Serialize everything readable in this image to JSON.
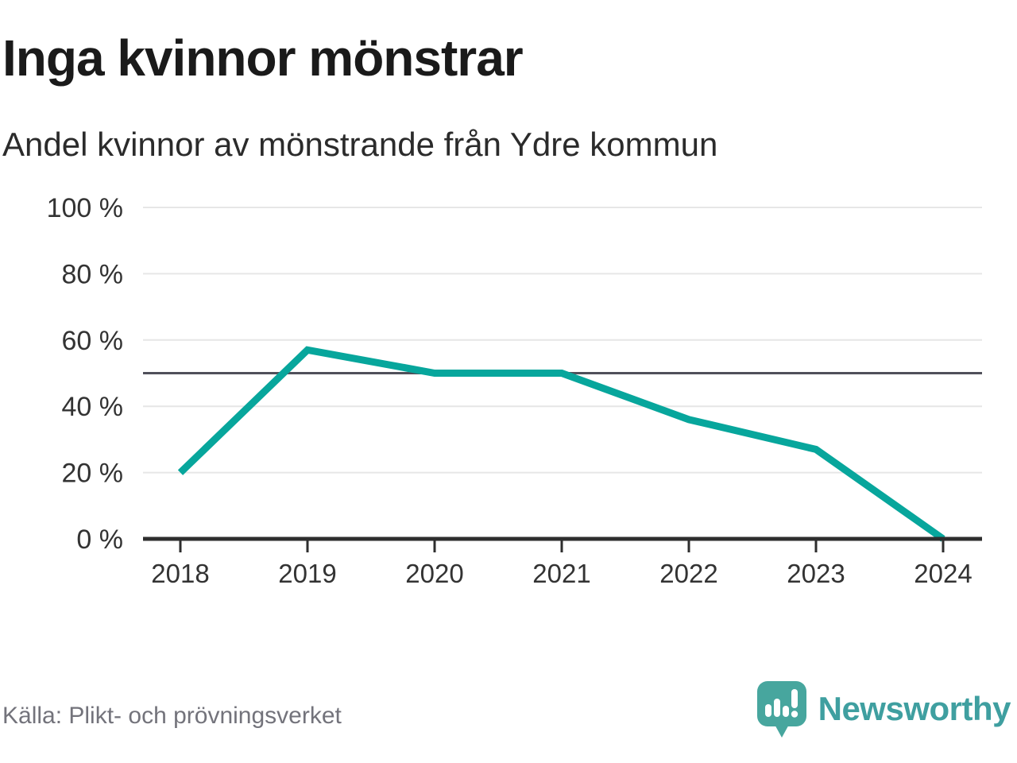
{
  "page": {
    "background": "#ffffff"
  },
  "header": {
    "title": "Inga kvinnor mönstrar",
    "subtitle": "Andel kvinnor av mönstrande från Ydre kommun"
  },
  "chart_data": {
    "type": "line",
    "title": "Inga kvinnor mönstrar",
    "subtitle": "Andel kvinnor av mönstrande från Ydre kommun",
    "categories": [
      "2018",
      "2019",
      "2020",
      "2021",
      "2022",
      "2023",
      "2024"
    ],
    "series": [
      {
        "name": "Andel kvinnor av mönstrande",
        "values": [
          20,
          57,
          50,
          50,
          36,
          27,
          0
        ]
      }
    ],
    "unit": "%",
    "ylim": [
      0,
      100
    ],
    "yticks": [
      {
        "value": 0,
        "label": "0 %"
      },
      {
        "value": 20,
        "label": "20 %"
      },
      {
        "value": 40,
        "label": "40 %"
      },
      {
        "value": 60,
        "label": "60 %"
      },
      {
        "value": 80,
        "label": "80 %"
      },
      {
        "value": 100,
        "label": "100 %"
      }
    ],
    "reference_line": {
      "value": 50
    },
    "grid": "horizontal",
    "legend": "none",
    "line_color": "#07a69c"
  },
  "footer": {
    "source": "Källa: Plikt- och prövningsverket",
    "brand": {
      "name": "Newsworthy",
      "icon": "speech-bubble-bar-chart-icon",
      "text_color": "#3f9fa0",
      "icon_color": "#47a69e"
    }
  },
  "colors": {
    "accent": "#07a69c",
    "grid": "#e6e6e6",
    "reference_line": "#50505a",
    "axis": "#2e2e2e",
    "tick_text": "#333333",
    "muted_text": "#73737b"
  }
}
